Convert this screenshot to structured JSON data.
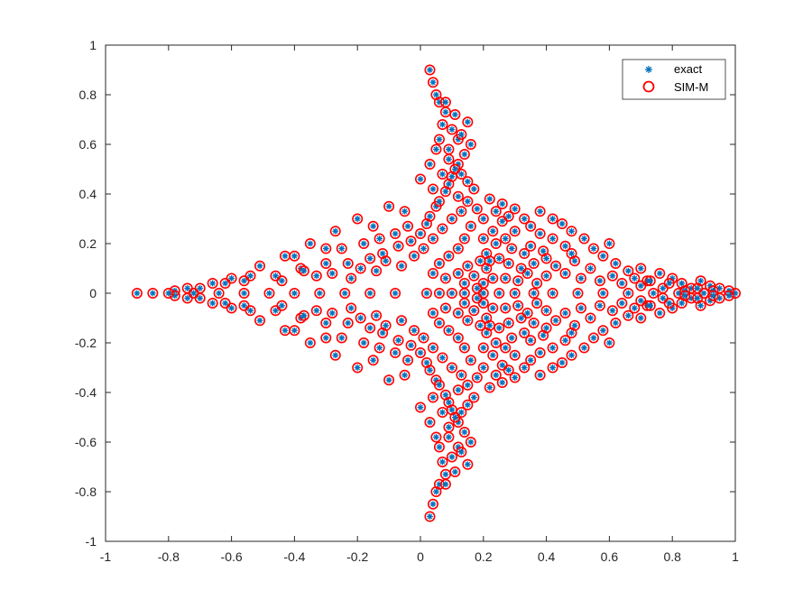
{
  "chart_data": {
    "type": "scatter",
    "title": "",
    "xlabel": "",
    "ylabel": "",
    "xlim": [
      -1,
      1
    ],
    "ylim": [
      -1,
      1
    ],
    "xticks": [
      -1,
      -0.8,
      -0.6,
      -0.4,
      -0.2,
      0,
      0.2,
      0.4,
      0.6,
      0.8,
      1
    ],
    "yticks": [
      -1,
      -0.8,
      -0.6,
      -0.4,
      -0.2,
      0,
      0.2,
      0.4,
      0.6,
      0.8,
      1
    ],
    "xtick_labels": [
      "-1",
      "-0.8",
      "-0.6",
      "-0.4",
      "-0.2",
      "0",
      "0.2",
      "0.4",
      "0.6",
      "0.8",
      "1"
    ],
    "ytick_labels": [
      "-1",
      "-0.8",
      "-0.6",
      "-0.4",
      "-0.2",
      "0",
      "0.2",
      "0.4",
      "0.6",
      "0.8",
      "1"
    ],
    "grid": false,
    "legend_location": "top-right",
    "series": [
      {
        "name": "exact",
        "marker": "asterisk",
        "color": "#0072BD",
        "points_upper_half": [
          [
            1.0,
            0.0
          ],
          [
            0.98,
            0.01
          ],
          [
            0.95,
            0.02
          ],
          [
            0.92,
            0.03
          ],
          [
            0.89,
            0.05
          ],
          [
            0.86,
            0.02
          ],
          [
            0.83,
            0.04
          ],
          [
            0.8,
            0.06
          ],
          [
            0.76,
            0.08
          ],
          [
            0.72,
            0.05
          ],
          [
            0.7,
            0.1
          ],
          [
            0.66,
            0.09
          ],
          [
            0.62,
            0.12
          ],
          [
            0.6,
            0.2
          ],
          [
            0.58,
            0.15
          ],
          [
            0.55,
            0.18
          ],
          [
            0.52,
            0.22
          ],
          [
            0.48,
            0.25
          ],
          [
            0.45,
            0.28
          ],
          [
            0.42,
            0.3
          ],
          [
            0.38,
            0.33
          ],
          [
            -0.9,
            0.0
          ],
          [
            -0.85,
            0.0
          ],
          [
            -0.78,
            0.01
          ],
          [
            -0.74,
            0.02
          ],
          [
            -0.7,
            0.02
          ],
          [
            -0.66,
            0.04
          ],
          [
            -0.6,
            0.06
          ],
          [
            -0.56,
            0.05
          ],
          [
            -0.51,
            0.11
          ],
          [
            -0.46,
            0.07
          ],
          [
            -0.43,
            0.15
          ],
          [
            -0.38,
            0.1
          ],
          [
            -0.35,
            0.2
          ],
          [
            -0.3,
            0.12
          ],
          [
            -0.27,
            0.25
          ],
          [
            -0.2,
            0.3
          ],
          [
            -0.15,
            0.27
          ],
          [
            -0.1,
            0.35
          ],
          [
            -0.05,
            0.33
          ],
          [
            0.0,
            0.46
          ],
          [
            0.03,
            0.52
          ],
          [
            0.05,
            0.58
          ],
          [
            0.06,
            0.62
          ],
          [
            0.07,
            0.68
          ],
          [
            0.08,
            0.73
          ],
          [
            0.06,
            0.77
          ],
          [
            0.05,
            0.8
          ],
          [
            0.04,
            0.85
          ],
          [
            0.03,
            0.9
          ],
          [
            -0.25,
            0.18
          ],
          [
            -0.18,
            0.2
          ],
          [
            -0.12,
            0.16
          ],
          [
            -0.08,
            0.24
          ],
          [
            -0.03,
            0.21
          ],
          [
            0.02,
            0.28
          ],
          [
            0.05,
            0.35
          ],
          [
            0.08,
            0.41
          ],
          [
            0.1,
            0.47
          ],
          [
            0.12,
            0.52
          ],
          [
            0.14,
            0.56
          ],
          [
            0.16,
            0.6
          ],
          [
            0.12,
            0.62
          ],
          [
            0.1,
            0.66
          ],
          [
            0.09,
            0.58
          ],
          [
            0.17,
            0.42
          ],
          [
            0.22,
            0.38
          ],
          [
            0.26,
            0.36
          ],
          [
            0.3,
            0.34
          ],
          [
            0.33,
            0.3
          ],
          [
            0.35,
            0.27
          ],
          [
            0.3,
            0.25
          ],
          [
            0.27,
            0.22
          ],
          [
            0.24,
            0.2
          ],
          [
            0.21,
            0.16
          ],
          [
            0.19,
            0.13
          ],
          [
            0.21,
            0.1
          ],
          [
            0.23,
            0.06
          ],
          [
            0.2,
            0.04
          ],
          [
            0.18,
            0.02
          ],
          [
            0.22,
            0.13
          ],
          [
            0.25,
            0.14
          ],
          [
            0.28,
            0.12
          ],
          [
            0.32,
            0.1
          ],
          [
            -0.8,
            0.0
          ],
          [
            -0.72,
            0.0
          ],
          [
            -0.64,
            0.0
          ],
          [
            -0.56,
            0.0
          ],
          [
            -0.48,
            0.0
          ],
          [
            -0.4,
            0.0
          ],
          [
            -0.32,
            0.0
          ],
          [
            -0.24,
            0.0
          ],
          [
            -0.16,
            0.0
          ],
          [
            -0.08,
            0.0
          ],
          [
            0.02,
            0.0
          ],
          [
            0.06,
            0.0
          ],
          [
            0.1,
            0.0
          ],
          [
            0.14,
            0.0
          ],
          [
            0.2,
            0.0
          ],
          [
            0.25,
            0.0
          ],
          [
            0.3,
            0.0
          ],
          [
            0.36,
            0.0
          ],
          [
            0.42,
            0.0
          ],
          [
            0.5,
            0.0
          ],
          [
            0.58,
            0.0
          ],
          [
            0.66,
            0.0
          ],
          [
            0.74,
            0.0
          ],
          [
            0.82,
            0.0
          ],
          [
            0.9,
            0.0
          ],
          [
            -0.62,
            0.04
          ],
          [
            -0.54,
            0.07
          ],
          [
            -0.44,
            0.05
          ],
          [
            -0.37,
            0.09
          ],
          [
            -0.33,
            0.07
          ],
          [
            -0.28,
            0.08
          ],
          [
            -0.22,
            0.06
          ],
          [
            -0.19,
            0.1
          ],
          [
            -0.14,
            0.09
          ],
          [
            -0.11,
            0.13
          ],
          [
            -0.06,
            0.11
          ],
          [
            -0.02,
            0.15
          ],
          [
            0.01,
            0.18
          ],
          [
            0.04,
            0.22
          ],
          [
            0.07,
            0.26
          ],
          [
            0.1,
            0.3
          ],
          [
            0.13,
            0.33
          ],
          [
            0.15,
            0.37
          ],
          [
            0.12,
            0.39
          ],
          [
            0.09,
            0.44
          ],
          [
            0.11,
            0.5
          ],
          [
            0.13,
            0.48
          ],
          [
            0.15,
            0.45
          ],
          [
            0.18,
            0.34
          ],
          [
            0.2,
            0.3
          ],
          [
            0.16,
            0.27
          ],
          [
            0.14,
            0.22
          ],
          [
            0.12,
            0.18
          ],
          [
            0.09,
            0.15
          ],
          [
            0.06,
            0.12
          ],
          [
            0.04,
            0.08
          ],
          [
            0.08,
            0.06
          ],
          [
            0.12,
            0.08
          ],
          [
            0.15,
            0.11
          ],
          [
            0.17,
            0.07
          ],
          [
            0.14,
            0.04
          ],
          [
            0.27,
            0.06
          ],
          [
            0.31,
            0.05
          ],
          [
            0.34,
            0.08
          ],
          [
            0.37,
            0.04
          ],
          [
            0.4,
            0.07
          ],
          [
            0.43,
            0.11
          ],
          [
            0.46,
            0.08
          ],
          [
            0.49,
            0.13
          ],
          [
            0.51,
            0.06
          ],
          [
            0.54,
            0.1
          ],
          [
            0.57,
            0.05
          ],
          [
            0.61,
            0.07
          ],
          [
            0.64,
            0.04
          ],
          [
            0.68,
            0.06
          ],
          [
            0.7,
            0.03
          ],
          [
            0.73,
            0.05
          ],
          [
            0.77,
            0.02
          ],
          [
            0.79,
            0.04
          ],
          [
            0.84,
            0.01
          ],
          [
            0.88,
            0.02
          ],
          [
            0.93,
            0.01
          ],
          [
            0.35,
            0.19
          ],
          [
            0.39,
            0.17
          ],
          [
            0.42,
            0.22
          ],
          [
            0.46,
            0.19
          ],
          [
            0.48,
            0.16
          ],
          [
            0.38,
            0.24
          ],
          [
            0.4,
            0.14
          ],
          [
            0.36,
            0.12
          ],
          [
            0.33,
            0.16
          ],
          [
            0.29,
            0.18
          ],
          [
            0.26,
            0.29
          ],
          [
            0.23,
            0.25
          ],
          [
            0.28,
            0.31
          ],
          [
            0.24,
            0.33
          ],
          [
            0.2,
            0.22
          ],
          [
            -0.4,
            0.15
          ],
          [
            -0.3,
            0.18
          ],
          [
            -0.23,
            0.12
          ],
          [
            -0.16,
            0.14
          ],
          [
            -0.13,
            0.22
          ],
          [
            -0.07,
            0.19
          ],
          [
            -0.04,
            0.27
          ],
          [
            0.0,
            0.24
          ],
          [
            0.03,
            0.31
          ],
          [
            0.06,
            0.37
          ],
          [
            0.04,
            0.42
          ],
          [
            0.07,
            0.48
          ],
          [
            0.09,
            0.54
          ],
          [
            0.13,
            0.64
          ],
          [
            0.15,
            0.69
          ],
          [
            0.11,
            0.72
          ],
          [
            0.08,
            0.77
          ]
        ]
      },
      {
        "name": "SIM-M",
        "marker": "circle",
        "color": "#FF0000",
        "note_matches_exact": true
      }
    ],
    "symmetry": "mirrored about y = 0"
  },
  "legend": {
    "entries": [
      {
        "label": "exact",
        "icon": "asterisk-marker-icon",
        "color": "#0072BD"
      },
      {
        "label": "SIM-M",
        "icon": "circle-marker-icon",
        "color": "#FF0000"
      }
    ]
  }
}
